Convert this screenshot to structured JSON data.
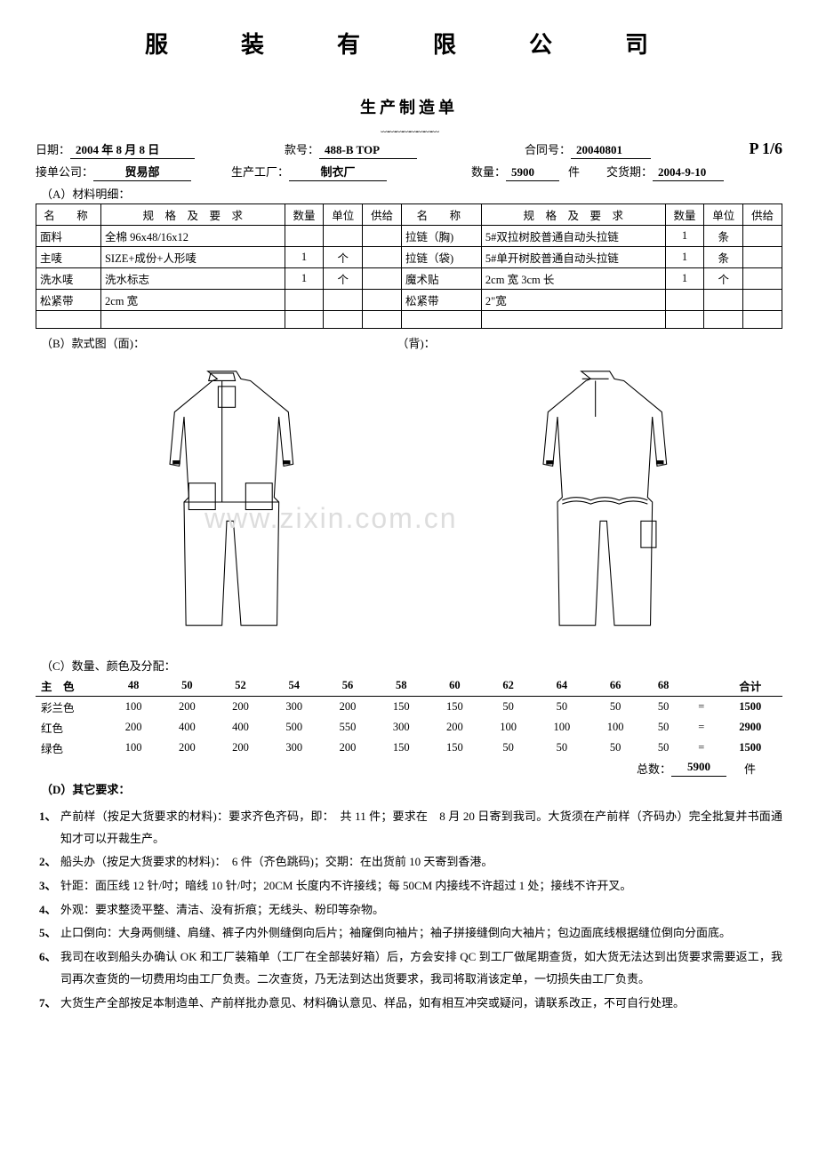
{
  "company": "服　装　有　限　公　司",
  "doc_title": "生产制造单",
  "page_num": "P 1/6",
  "header": {
    "date_label": "日期：",
    "date": "2004 年 8 月 8 日",
    "style_no_label": "款号：",
    "style_no": "488-B TOP",
    "contract_label": "合同号：",
    "contract": "20040801",
    "company_label": "接单公司：",
    "company": "贸易部",
    "factory_label": "生产工厂：",
    "factory": "制衣厂",
    "qty_label": "数量：",
    "qty": "5900",
    "qty_unit": "件",
    "delivery_label": "交货期：",
    "delivery": "2004-9-10"
  },
  "section_a": "（A）材料明细：",
  "material_headers": {
    "name": "名　称",
    "spec": "规　格　及　要　求",
    "qty": "数量",
    "unit": "单位",
    "supply": "供给"
  },
  "materials_left": [
    {
      "name": "面料",
      "spec": "全棉 96x48/16x12",
      "qty": "",
      "unit": "",
      "supply": ""
    },
    {
      "name": "主唛",
      "spec": "SIZE+成份+人形唛",
      "qty": "1",
      "unit": "个",
      "supply": ""
    },
    {
      "name": "洗水唛",
      "spec": "洗水标志",
      "qty": "1",
      "unit": "个",
      "supply": ""
    },
    {
      "name": "松紧带",
      "spec": "2cm 宽",
      "qty": "",
      "unit": "",
      "supply": ""
    },
    {
      "name": "",
      "spec": "",
      "qty": "",
      "unit": "",
      "supply": ""
    }
  ],
  "materials_right": [
    {
      "name": "拉链（胸)",
      "spec": "5#双拉树胶普通自动头拉链",
      "qty": "1",
      "unit": "条",
      "supply": ""
    },
    {
      "name": "拉链（袋)",
      "spec": "5#单开树胶普通自动头拉链",
      "qty": "1",
      "unit": "条",
      "supply": ""
    },
    {
      "name": "魔术贴",
      "spec": "2cm 宽 3cm 长",
      "qty": "1",
      "unit": "个",
      "supply": ""
    },
    {
      "name": "松紧带",
      "spec": "2\"宽",
      "qty": "",
      "unit": "",
      "supply": ""
    },
    {
      "name": "",
      "spec": "",
      "qty": "",
      "unit": "",
      "supply": ""
    }
  ],
  "section_b_front": "（B）款式图（面)：",
  "section_b_back": "（背)：",
  "watermark": "www.zixin.com.cn",
  "section_c": "（C）数量、颜色及分配：",
  "qty_table": {
    "color_header": "主　色",
    "sizes": [
      "48",
      "50",
      "52",
      "54",
      "56",
      "58",
      "60",
      "62",
      "64",
      "66",
      "68",
      "",
      "合计"
    ],
    "rows": [
      {
        "color": "彩兰色",
        "vals": [
          "100",
          "200",
          "200",
          "300",
          "200",
          "150",
          "150",
          "50",
          "50",
          "50",
          "50",
          "=",
          "1500"
        ]
      },
      {
        "color": "红色",
        "vals": [
          "200",
          "400",
          "400",
          "500",
          "550",
          "300",
          "200",
          "100",
          "100",
          "100",
          "50",
          "=",
          "2900"
        ]
      },
      {
        "color": "绿色",
        "vals": [
          "100",
          "200",
          "200",
          "300",
          "200",
          "150",
          "150",
          "50",
          "50",
          "50",
          "50",
          "=",
          "1500"
        ]
      }
    ],
    "total_label": "总数：",
    "total": "5900",
    "total_unit": "件"
  },
  "section_d": "（D）其它要求：",
  "requirements": [
    "产前样（按足大货要求的材料)：要求齐色齐码，即：　共 11 件；要求在　8 月 20 日寄到我司。大货须在产前样（齐码办）完全批复并书面通知才可以开裁生产。",
    "船头办（按足大货要求的材料)：　6 件（齐色跳码)；交期：在出货前 10 天寄到香港。",
    "针距：面压线 12 针/吋；暗线 10 针/吋；20CM 长度内不许接线；每 50CM 内接线不许超过 1 处；接线不许开叉。",
    "外观：要求整烫平整、清洁、没有折痕；无线头、粉印等杂物。",
    "止口倒向：大身两侧缝、肩缝、裤子内外侧缝倒向后片；袖窿倒向袖片；袖子拼接缝倒向大袖片；包边面底线根据缝位倒向分面底。",
    "我司在收到船头办确认 OK 和工厂装箱单（工厂在全部装好箱）后，方会安排 QC 到工厂做尾期查货，如大货无法达到出货要求需要返工，我司再次查货的一切费用均由工厂负责。二次查货，乃无法到达出货要求，我司将取消该定单，一切损失由工厂负责。",
    "大货生产全部按足本制造单、产前样批办意见、材料确认意见、样品，如有相互冲突或疑问，请联系改正，不可自行处理。"
  ]
}
